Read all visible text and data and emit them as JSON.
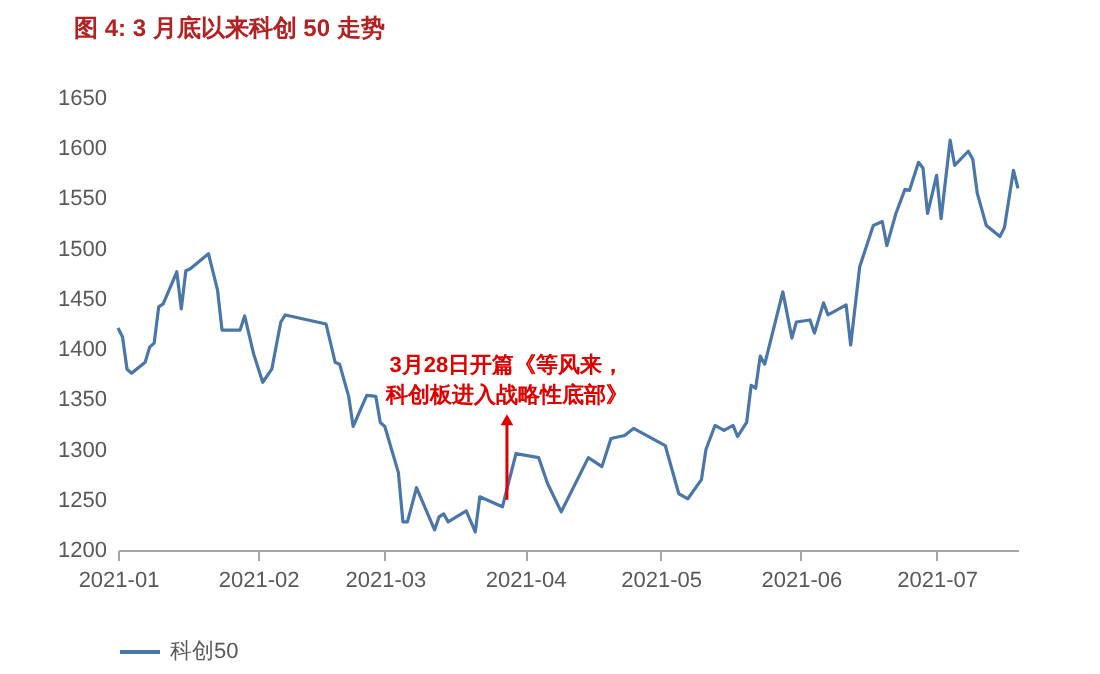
{
  "chart_data": {
    "type": "line",
    "title": "图 4: 3 月底以来科创 50 走势",
    "x": [
      "2021-01-01",
      "2021-01-02",
      "2021-01-03",
      "2021-01-04",
      "2021-01-07",
      "2021-01-08",
      "2021-01-09",
      "2021-01-10",
      "2021-01-11",
      "2021-01-14",
      "2021-01-15",
      "2021-01-16",
      "2021-01-17",
      "2021-01-21",
      "2021-01-23",
      "2021-01-24",
      "2021-01-28",
      "2021-01-29",
      "2021-01-31",
      "2021-02-02",
      "2021-02-04",
      "2021-02-06",
      "2021-02-07",
      "2021-02-16",
      "2021-02-18",
      "2021-02-19",
      "2021-02-21",
      "2021-02-22",
      "2021-02-25",
      "2021-02-27",
      "2021-02-28",
      "2021-03-01",
      "2021-03-04",
      "2021-03-05",
      "2021-03-06",
      "2021-03-08",
      "2021-03-12",
      "2021-03-13",
      "2021-03-14",
      "2021-03-15",
      "2021-03-19",
      "2021-03-21",
      "2021-03-22",
      "2021-03-27",
      "2021-03-30",
      "2021-04-04",
      "2021-04-06",
      "2021-04-09",
      "2021-04-15",
      "2021-04-18",
      "2021-04-20",
      "2021-04-23",
      "2021-04-25",
      "2021-05-02",
      "2021-05-05",
      "2021-05-07",
      "2021-05-10",
      "2021-05-11",
      "2021-05-13",
      "2021-05-15",
      "2021-05-17",
      "2021-05-18",
      "2021-05-20",
      "2021-05-21",
      "2021-05-22",
      "2021-05-23",
      "2021-05-24",
      "2021-05-28",
      "2021-05-30",
      "2021-05-31",
      "2021-06-03",
      "2021-06-04",
      "2021-06-06",
      "2021-06-07",
      "2021-06-11",
      "2021-06-12",
      "2021-06-14",
      "2021-06-17",
      "2021-06-19",
      "2021-06-20",
      "2021-06-22",
      "2021-06-24",
      "2021-06-25",
      "2021-06-27",
      "2021-06-28",
      "2021-06-29",
      "2021-07-01",
      "2021-07-02",
      "2021-07-04",
      "2021-07-05",
      "2021-07-08",
      "2021-07-09",
      "2021-07-10",
      "2021-07-12",
      "2021-07-15",
      "2021-07-16",
      "2021-07-18",
      "2021-07-19"
    ],
    "series": [
      {
        "name": "科创50",
        "color": "#4a76a8",
        "values": [
          1421,
          1412,
          1380,
          1376,
          1387,
          1402,
          1406,
          1442,
          1445,
          1477,
          1440,
          1478,
          1480,
          1495,
          1459,
          1419,
          1419,
          1433,
          1395,
          1367,
          1380,
          1427,
          1434,
          1425,
          1387,
          1385,
          1353,
          1323,
          1354,
          1353,
          1327,
          1323,
          1277,
          1228,
          1228,
          1262,
          1220,
          1233,
          1236,
          1228,
          1239,
          1218,
          1253,
          1243,
          1296,
          1292,
          1266,
          1238,
          1292,
          1283,
          1311,
          1314,
          1321,
          1304,
          1256,
          1251,
          1270,
          1300,
          1324,
          1319,
          1324,
          1313,
          1327,
          1364,
          1361,
          1393,
          1385,
          1457,
          1411,
          1427,
          1429,
          1416,
          1446,
          1434,
          1444,
          1404,
          1482,
          1523,
          1527,
          1503,
          1535,
          1559,
          1558,
          1586,
          1580,
          1535,
          1573,
          1530,
          1608,
          1583,
          1597,
          1589,
          1555,
          1523,
          1512,
          1521,
          1578,
          1560
        ]
      }
    ],
    "xlim": [
      "2021-01-01",
      "2021-07-19"
    ],
    "xticks": [
      "2021-01",
      "2021-02",
      "2021-03",
      "2021-04",
      "2021-05",
      "2021-06",
      "2021-07"
    ],
    "ylim": [
      1200,
      1650
    ],
    "yticks": [
      1200,
      1250,
      1300,
      1350,
      1400,
      1450,
      1500,
      1550,
      1600,
      1650
    ],
    "annotations": [
      {
        "text": "3月28日开篇《等风来，科创板进入战略性底部》",
        "x": "2021-03-28",
        "y": 1250
      }
    ],
    "legend": "bottom",
    "grid": false
  }
}
